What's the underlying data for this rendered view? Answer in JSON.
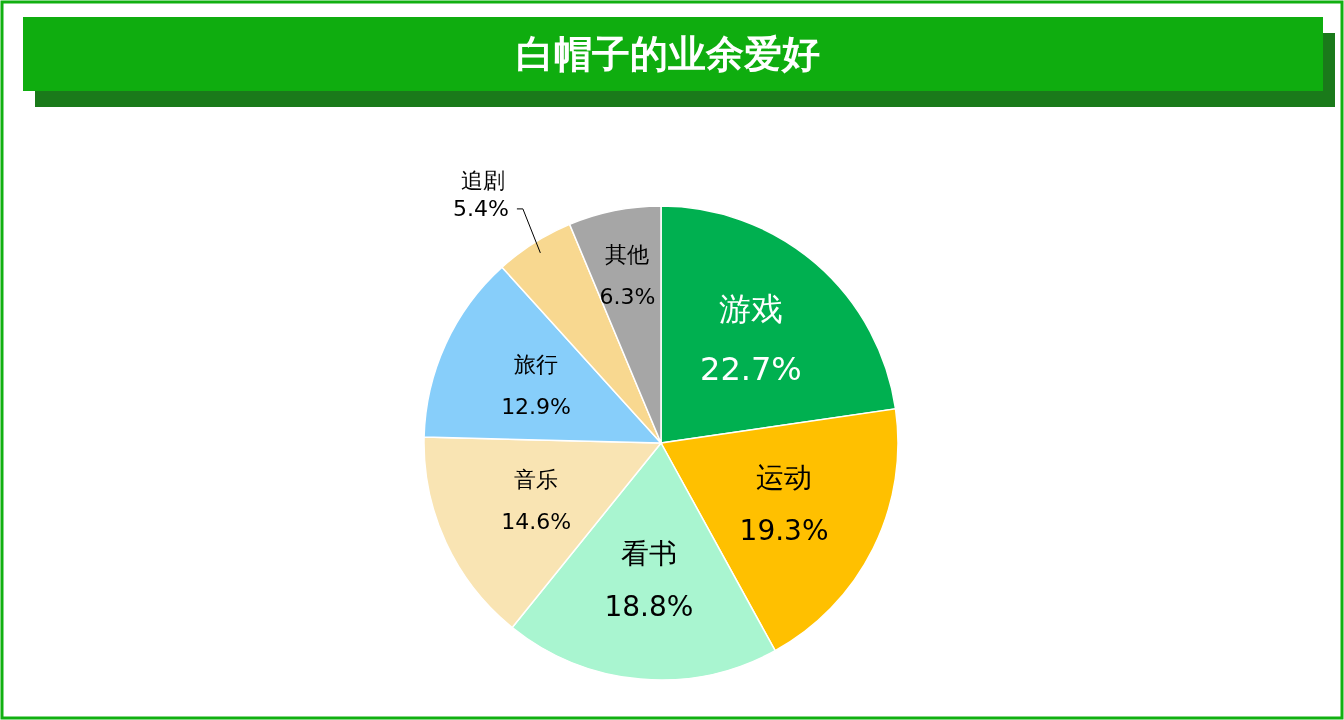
{
  "chart_data": {
    "type": "pie",
    "title": "白帽子的业余爱好",
    "categories": [
      "游戏",
      "运动",
      "看书",
      "音乐",
      "旅行",
      "追剧",
      "其他"
    ],
    "values": [
      22.7,
      19.3,
      18.8,
      14.6,
      12.9,
      5.4,
      6.3
    ],
    "colors": [
      "#00b050",
      "#ffc000",
      "#a9f5d0",
      "#f9e4b3",
      "#87cefa",
      "#f8d890",
      "#a6a6a6"
    ],
    "value_labels": [
      "22.7%",
      "19.3%",
      "18.8%",
      "14.6%",
      "12.9%",
      "5.4%",
      "6.3%"
    ]
  }
}
